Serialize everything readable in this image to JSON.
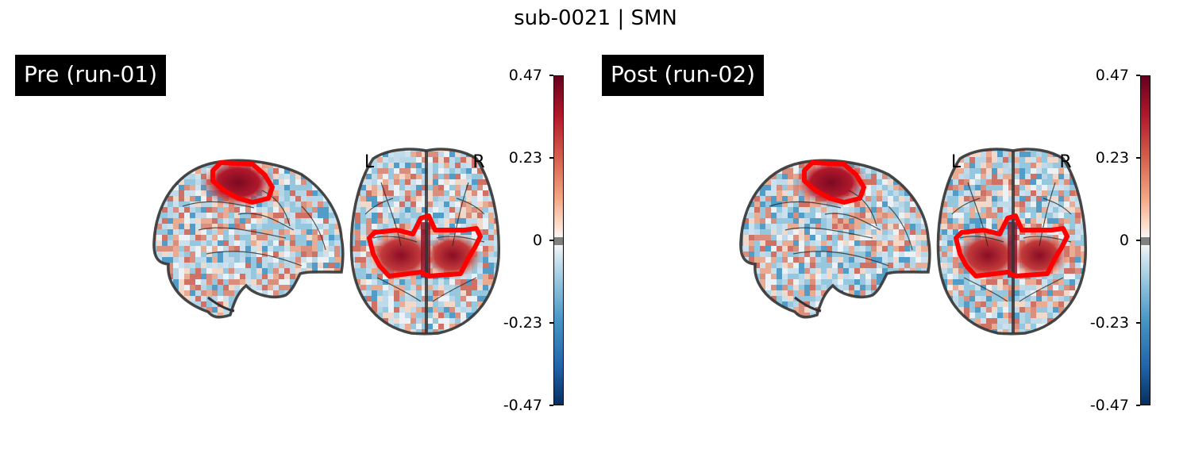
{
  "title": "sub-0021 | SMN",
  "panels": [
    {
      "label": "Pre (run-01)"
    },
    {
      "label": "Post (run-02)"
    }
  ],
  "hemisphere_labels": {
    "left": "L",
    "right": "R"
  },
  "colorbar": {
    "ticks": [
      "0.47",
      "0.23",
      "0",
      "-0.23",
      "-0.47"
    ],
    "colormap": "RdBu_r",
    "roi_outline_color": "#ff0000"
  }
}
